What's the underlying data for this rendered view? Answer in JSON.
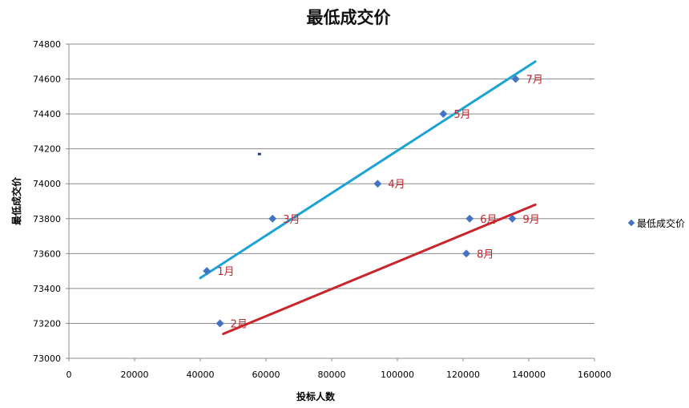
{
  "chart_data": {
    "type": "scatter",
    "title": "最低成交价",
    "xlabel": "投标人数",
    "ylabel": "最低成交价",
    "xlim": [
      0,
      160000
    ],
    "ylim": [
      73000,
      74800
    ],
    "x_ticks": [
      "0",
      "20000",
      "40000",
      "60000",
      "80000",
      "100000",
      "120000",
      "140000",
      "160000"
    ],
    "y_ticks": [
      "73000",
      "73200",
      "73400",
      "73600",
      "73800",
      "74000",
      "74200",
      "74400",
      "74600",
      "74800"
    ],
    "grid": "horizontal",
    "legend": "right",
    "series": [
      {
        "name": "最低成交价",
        "color": "#4472c4",
        "points": [
          {
            "x": 42000,
            "y": 73500,
            "label": "1月"
          },
          {
            "x": 46000,
            "y": 73200,
            "label": "2月"
          },
          {
            "x": 62000,
            "y": 73800,
            "label": "3月"
          },
          {
            "x": 94000,
            "y": 74000,
            "label": "4月"
          },
          {
            "x": 114000,
            "y": 74400,
            "label": "5月"
          },
          {
            "x": 122000,
            "y": 73800,
            "label": "6月"
          },
          {
            "x": 136000,
            "y": 74600,
            "label": "7月"
          },
          {
            "x": 121000,
            "y": 73600,
            "label": "8月"
          },
          {
            "x": 135000,
            "y": 73800,
            "label": "9月"
          }
        ]
      }
    ],
    "trendlines": [
      {
        "color": "#1aa3d4",
        "from": [
          40000,
          73460
        ],
        "to": [
          142000,
          74700
        ]
      },
      {
        "color": "#c9252c",
        "from": [
          47000,
          73140
        ],
        "to": [
          142000,
          73880
        ]
      }
    ],
    "stray_mark": {
      "x": 58000,
      "y": 74170,
      "color": "#1f3a8a"
    }
  }
}
